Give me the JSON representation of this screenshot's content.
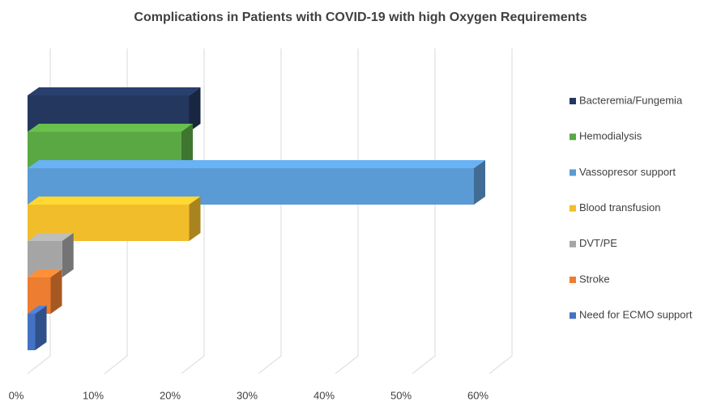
{
  "chart_data": {
    "type": "bar3d",
    "title": "Complications in Patients with COVID-19 with high Oxygen Requirements",
    "categories": [
      "Bacteremia/Fungemia",
      "Hemodialysis",
      "Vassopresor support",
      "Blood transfusion",
      "DVT/PE",
      "Stroke",
      "Need for ECMO support"
    ],
    "values": [
      21,
      20,
      58,
      21,
      4.5,
      3,
      1
    ],
    "colors": [
      "#24375f",
      "#5aa843",
      "#5b9bd5",
      "#f2bd2b",
      "#a5a5a5",
      "#ed7d31",
      "#4472c4"
    ],
    "xlim": [
      0,
      60
    ],
    "xticks": [
      {
        "value": 0,
        "label": "0%"
      },
      {
        "value": 10,
        "label": "10%"
      },
      {
        "value": 20,
        "label": "20%"
      },
      {
        "value": 30,
        "label": "30%"
      },
      {
        "value": 40,
        "label": "40%"
      },
      {
        "value": 50,
        "label": "50%"
      },
      {
        "value": 60,
        "label": "60%"
      }
    ],
    "grid": true
  }
}
